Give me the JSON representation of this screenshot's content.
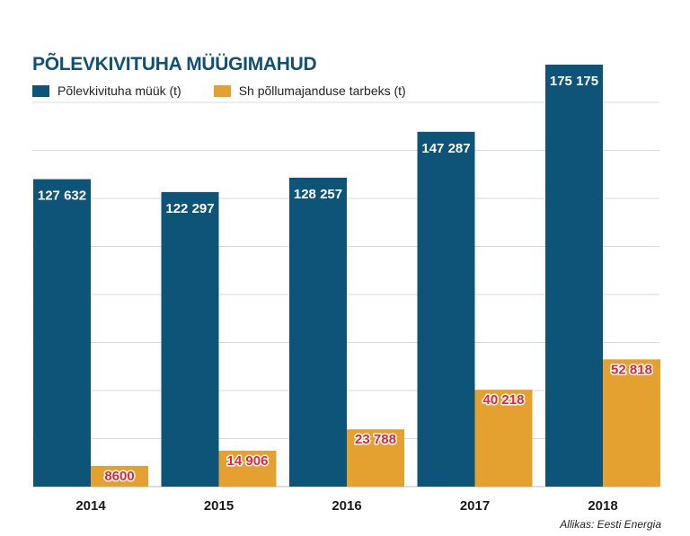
{
  "title": "PÕLEVKIVITUHA MÜÜGIMAHUD",
  "source": "Allikas: Eesti Energia",
  "colors": {
    "sales": "#0e5479",
    "agriculture": "#e4a12f",
    "sales_label": "#ffffff",
    "agriculture_label": "#e8232d",
    "grid": "#d9d9d9"
  },
  "legend": {
    "sales": "Põlevkivituha müük (t)",
    "agriculture": "Sh põllumajanduse tarbeks (t)"
  },
  "chart_data": {
    "type": "bar",
    "title": "PÕLEVKIVITUHA MÜÜGIMAHUD",
    "categories": [
      "2014",
      "2015",
      "2016",
      "2017",
      "2018"
    ],
    "series": [
      {
        "name": "Põlevkivituha müük (t)",
        "values": [
          127632,
          122297,
          128257,
          147287,
          175175
        ],
        "labels": [
          "127 632",
          "122 297",
          "128 257",
          "147 287",
          "175 175"
        ]
      },
      {
        "name": "Sh põllumajanduse tarbeks (t)",
        "values": [
          8600,
          14906,
          23788,
          40218,
          52818
        ],
        "labels": [
          "8600",
          "14 906",
          "23 788",
          "40 218",
          "52 818"
        ]
      }
    ],
    "ylim": [
      0,
      175175
    ],
    "grid": true,
    "legend": "top-left"
  }
}
